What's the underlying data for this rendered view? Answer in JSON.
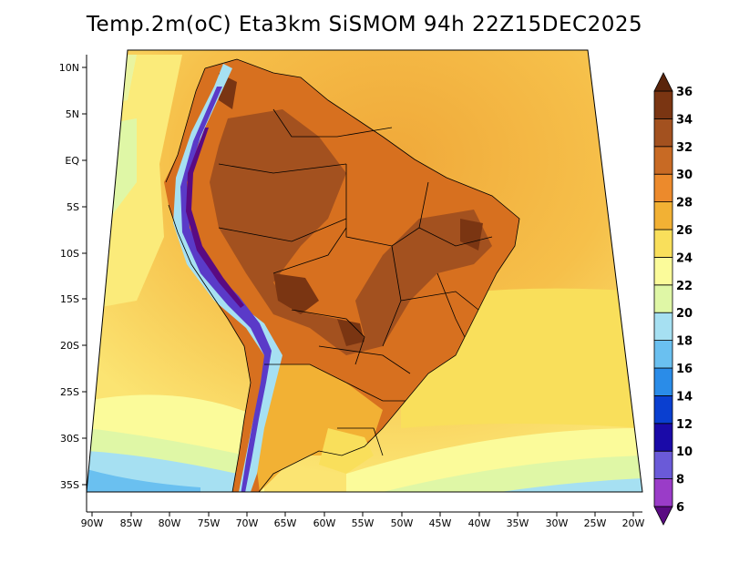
{
  "title": "Temp.2m(oC) Eta3km SiSMOM 94h 22Z15DEC2025",
  "map": {
    "lat_ticks": [
      "10N",
      "5N",
      "EQ",
      "5S",
      "10S",
      "15S",
      "20S",
      "25S",
      "30S",
      "35S"
    ],
    "lon_ticks": [
      "90W",
      "85W",
      "80W",
      "75W",
      "70W",
      "65W",
      "60W",
      "55W",
      "50W",
      "45W",
      "40W",
      "35W",
      "30W",
      "25W",
      "20W"
    ]
  },
  "colorbar": {
    "levels": [
      "6",
      "8",
      "10",
      "12",
      "14",
      "16",
      "18",
      "20",
      "22",
      "24",
      "26",
      "28",
      "30",
      "32",
      "34",
      "36"
    ],
    "colors": [
      "#5a0a82",
      "#9a3cc8",
      "#6a5ad8",
      "#1a0aa8",
      "#0a3fd0",
      "#2a8ce8",
      "#6ac0f0",
      "#a6e0f2",
      "#dff7a6",
      "#fbfb9a",
      "#f9df5b",
      "#f2b134",
      "#ec8a2c",
      "#c86a24",
      "#a3511f",
      "#7a3512",
      "#5a240b"
    ]
  }
}
